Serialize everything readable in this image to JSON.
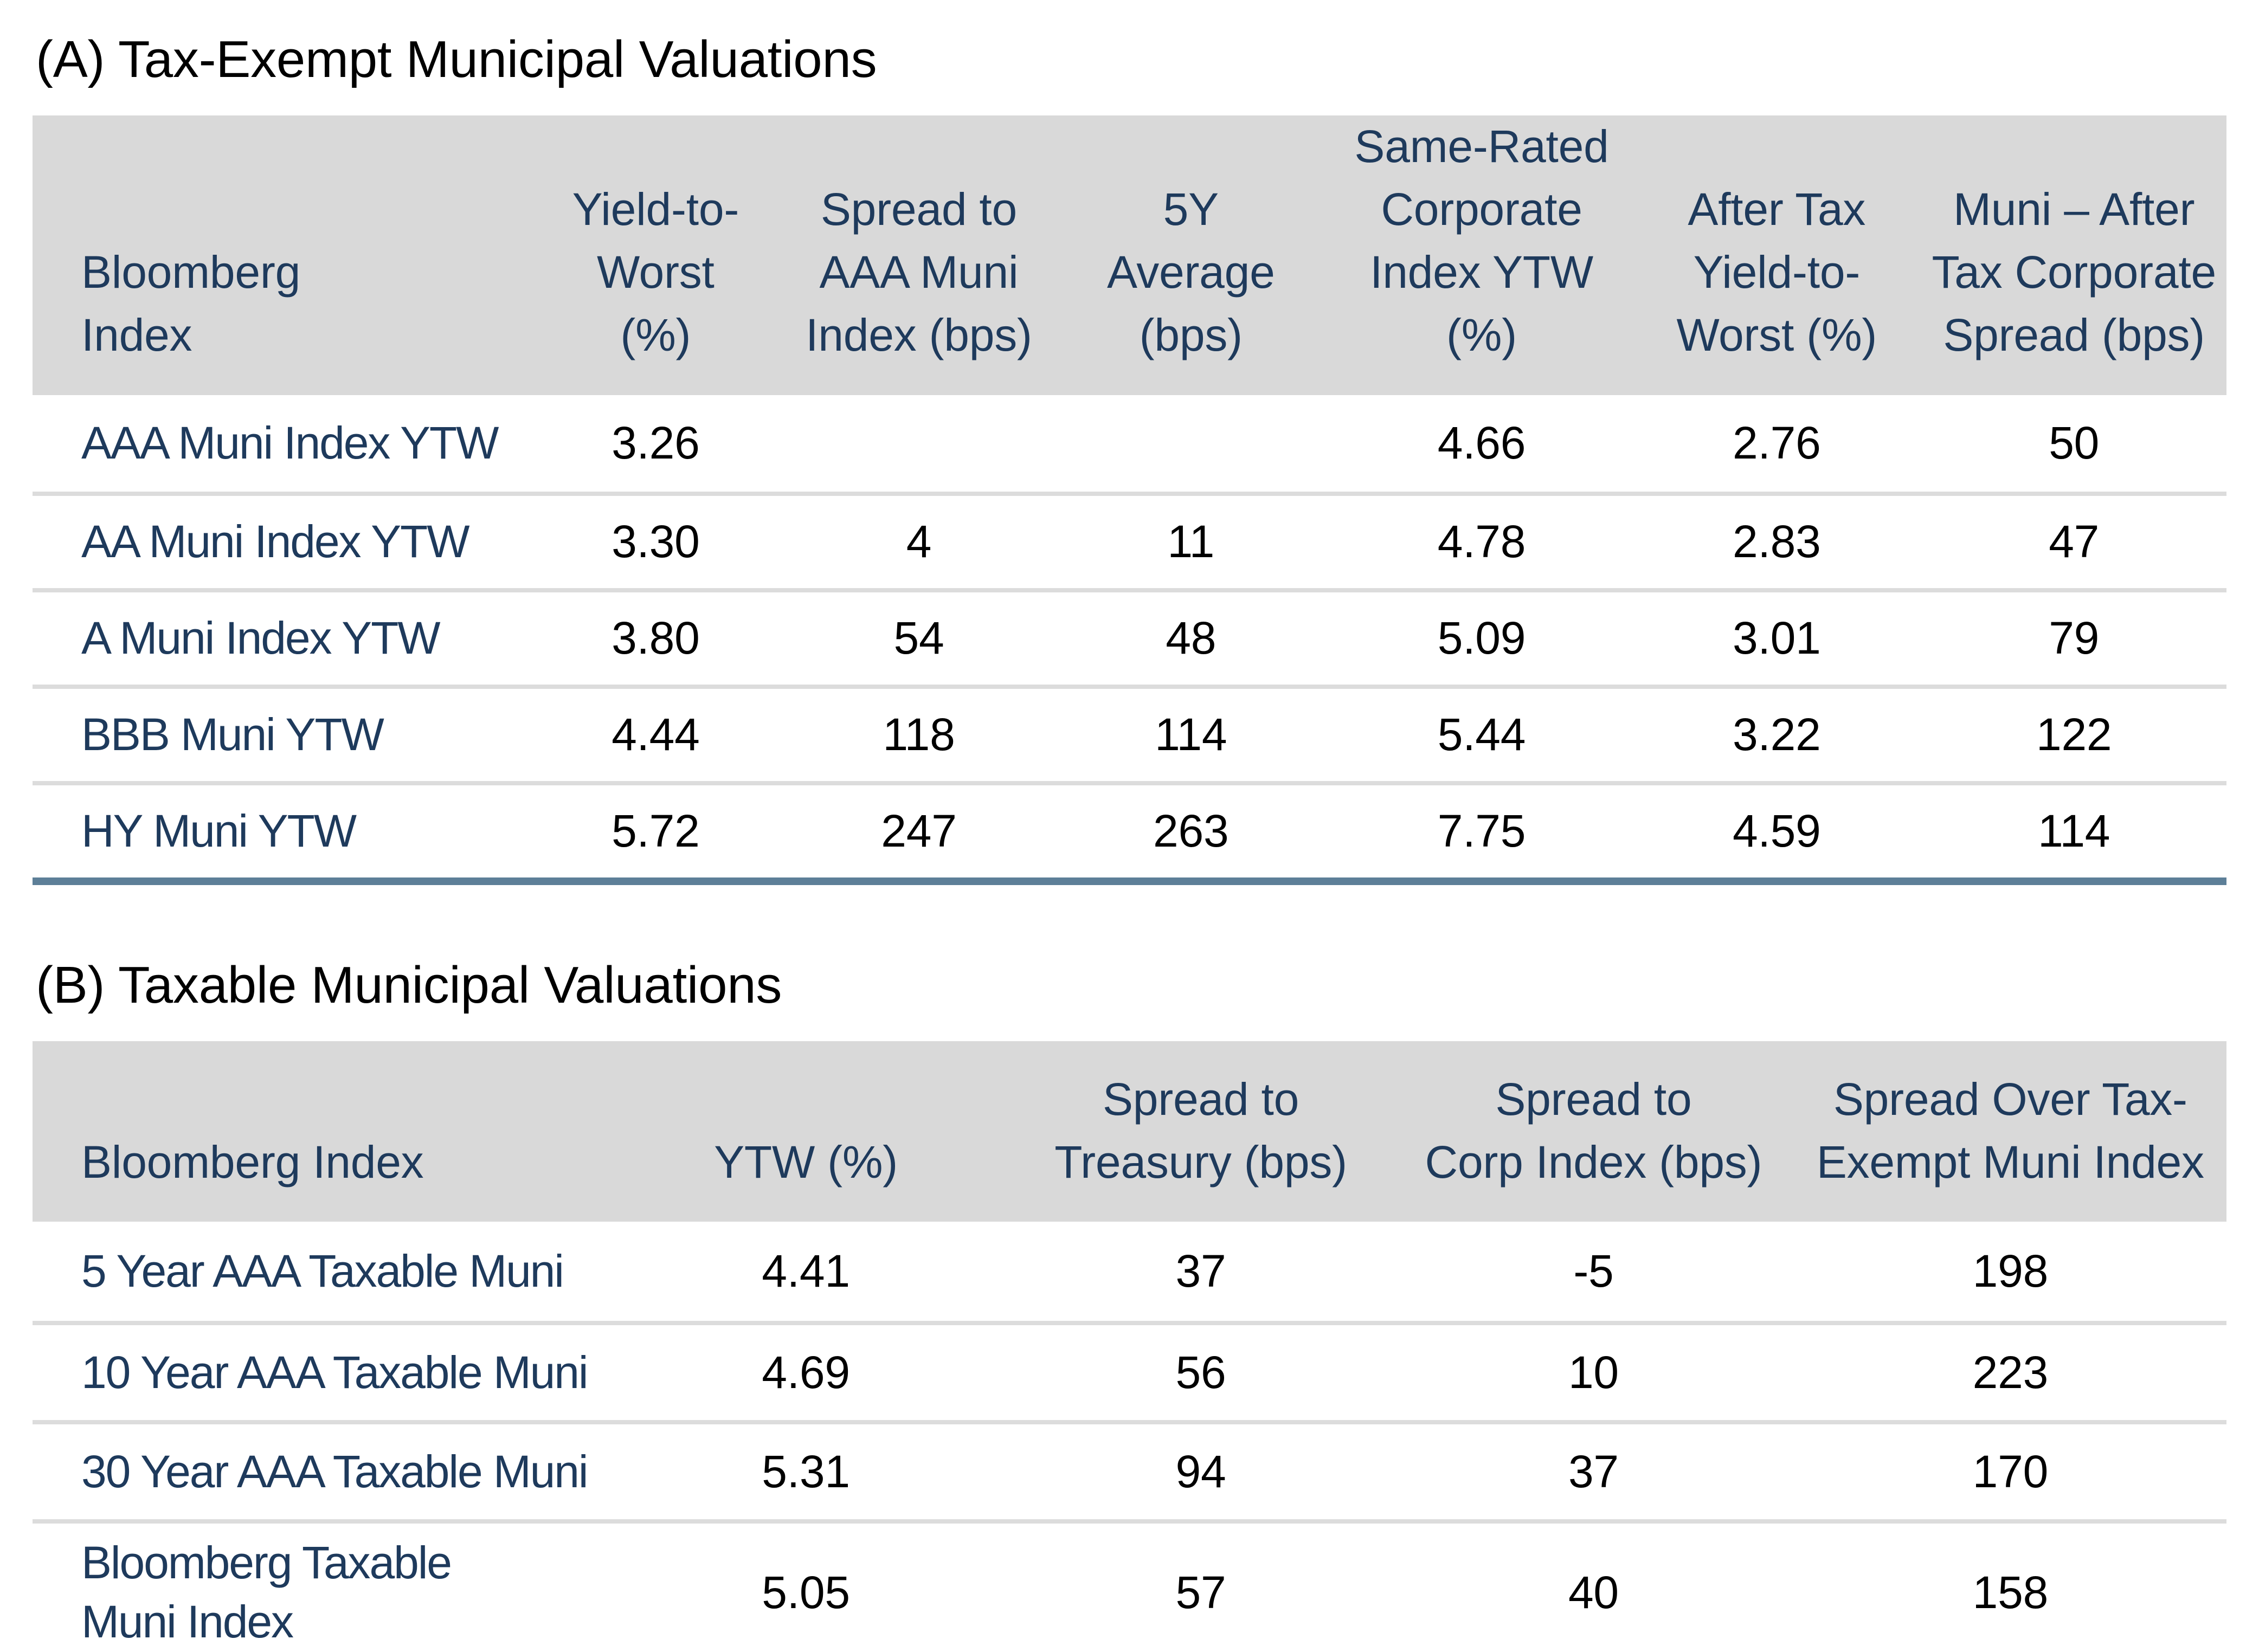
{
  "colors": {
    "header_background": "#d9d9d9",
    "heading_text": "#000000",
    "table_text_navy": "#1e3a5c",
    "value_text": "#000000",
    "row_divider": "#dcdcdc",
    "table_bottom_border": "#5d7f98"
  },
  "section_a": {
    "title": "(A) Tax-Exempt Municipal Valuations",
    "columns": [
      "Bloomberg\nIndex",
      "Yield-to-\nWorst\n(%)",
      "Spread to\nAAA Muni\nIndex (bps)",
      "5Y\nAverage\n(bps)",
      "Same-Rated\nCorporate\nIndex YTW (%)",
      "After Tax\nYield-to-\nWorst (%)",
      "Muni – After\nTax Corporate\nSpread (bps)"
    ],
    "rows": [
      {
        "label": "AAA Muni Index YTW",
        "values": [
          "3.26",
          "",
          "",
          "4.66",
          "2.76",
          "50"
        ]
      },
      {
        "label": "AA Muni Index YTW",
        "values": [
          "3.30",
          "4",
          "11",
          "4.78",
          "2.83",
          "47"
        ]
      },
      {
        "label": "A Muni Index YTW",
        "values": [
          "3.80",
          "54",
          "48",
          "5.09",
          "3.01",
          "79"
        ]
      },
      {
        "label": "BBB Muni YTW",
        "values": [
          "4.44",
          "118",
          "114",
          "5.44",
          "3.22",
          "122"
        ]
      },
      {
        "label": "HY Muni YTW",
        "values": [
          "5.72",
          "247",
          "263",
          "7.75",
          "4.59",
          "114"
        ]
      }
    ]
  },
  "section_b": {
    "title": "(B) Taxable Municipal Valuations",
    "columns": [
      "Bloomberg Index",
      "YTW (%)",
      "Spread to\nTreasury (bps)",
      "Spread to\nCorp Index (bps)",
      "Spread Over Tax-\nExempt Muni Index"
    ],
    "rows": [
      {
        "label": "5 Year AAA Taxable Muni",
        "values": [
          "4.41",
          "37",
          "-5",
          "198"
        ]
      },
      {
        "label": "10 Year AAA Taxable Muni",
        "values": [
          "4.69",
          "56",
          "10",
          "223"
        ]
      },
      {
        "label": "30 Year AAA Taxable Muni",
        "values": [
          "5.31",
          "94",
          "37",
          "170"
        ]
      },
      {
        "label": "Bloomberg Taxable\nMuni Index",
        "values": [
          "5.05",
          "57",
          "40",
          "158"
        ]
      }
    ]
  }
}
